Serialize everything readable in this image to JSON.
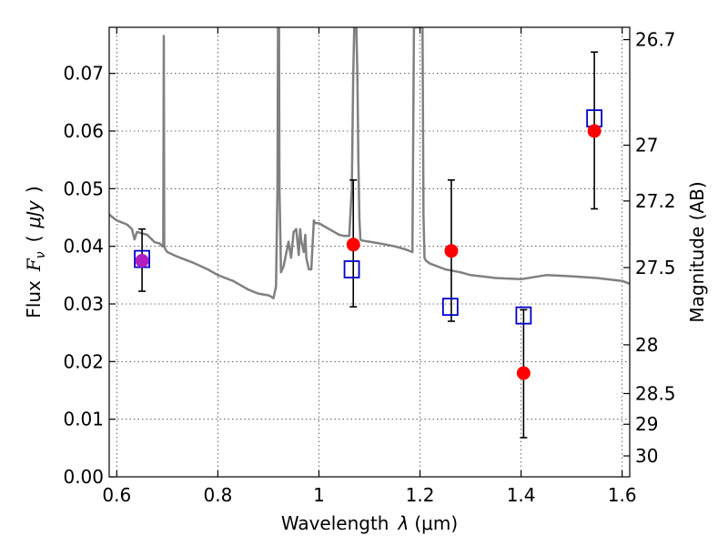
{
  "chart_data": {
    "type": "scatter",
    "xlabel": "Wavelength  λ (μm)",
    "ylabel": "Flux  Fν  ( μJy )",
    "ylabel_parts": {
      "flux": "Flux",
      "symbol": "F",
      "subscript": "ν",
      "open": "(",
      "unit": "μJy",
      "close": ")"
    },
    "xlabel_parts": {
      "word": "Wavelength",
      "symbol": "λ",
      "unit": "(μm)"
    },
    "y2label": "Magnitude (AB)",
    "xlim": [
      0.585,
      1.615
    ],
    "ylim": [
      0.0,
      0.078
    ],
    "grid": true,
    "x_ticks": [
      0.6,
      0.8,
      1.0,
      1.2,
      1.4,
      1.6
    ],
    "x_tick_labels": [
      "0.6",
      "0.8",
      "1",
      "1.2",
      "1.4",
      "1.6"
    ],
    "y_ticks": [
      0.0,
      0.01,
      0.02,
      0.03,
      0.04,
      0.05,
      0.06,
      0.07
    ],
    "y_tick_labels": [
      "0.00",
      "0.01",
      "0.02",
      "0.03",
      "0.04",
      "0.05",
      "0.06",
      "0.07"
    ],
    "y2_ticks": [
      26.7,
      27,
      27.2,
      27.5,
      28,
      28.5,
      29,
      30
    ],
    "y2_tick_labels": [
      "26.7",
      "27",
      "27.2",
      "27.5",
      "28",
      "28.5",
      "29",
      "30"
    ],
    "colors": {
      "spectrum": "#808080",
      "model": "#0000cc",
      "observed": "#ff0000",
      "observed_first": "#b020c0",
      "errorbar": "#000000"
    },
    "series": [
      {
        "kind": "spectrum",
        "x": [
          0.585,
          0.6,
          0.62,
          0.63,
          0.635,
          0.64,
          0.66,
          0.675,
          0.685,
          0.69,
          0.692,
          0.693,
          0.694,
          0.696,
          0.7,
          0.72,
          0.75,
          0.78,
          0.8,
          0.83,
          0.86,
          0.88,
          0.9,
          0.905,
          0.91,
          0.915,
          0.918,
          0.919,
          0.92,
          0.921,
          0.922,
          0.925,
          0.93,
          0.94,
          0.945,
          0.95,
          0.955,
          0.96,
          0.963,
          0.965,
          0.97,
          0.973,
          0.975,
          0.98,
          0.985,
          0.99,
          0.993,
          1.0,
          1.01,
          1.02,
          1.03,
          1.04,
          1.05,
          1.06,
          1.065,
          1.068,
          1.07,
          1.072,
          1.074,
          1.076,
          1.078,
          1.08,
          1.082,
          1.085,
          1.1,
          1.12,
          1.15,
          1.17,
          1.185,
          1.188,
          1.19,
          1.2,
          1.205,
          1.207,
          1.209,
          1.212,
          1.22,
          1.25,
          1.28,
          1.3,
          1.35,
          1.4,
          1.45,
          1.5,
          1.55,
          1.6,
          1.615
        ],
        "y": [
          0.0455,
          0.0445,
          0.0438,
          0.043,
          0.0412,
          0.0425,
          0.042,
          0.0407,
          0.0405,
          0.04,
          0.04,
          0.0765,
          0.0402,
          0.0395,
          0.039,
          0.0382,
          0.0372,
          0.036,
          0.035,
          0.034,
          0.0325,
          0.0318,
          0.0315,
          0.0313,
          0.031,
          0.033,
          0.05,
          0.078,
          0.078,
          0.078,
          0.05,
          0.0355,
          0.0365,
          0.0408,
          0.038,
          0.0425,
          0.043,
          0.0385,
          0.043,
          0.041,
          0.039,
          0.042,
          0.038,
          0.036,
          0.036,
          0.0445,
          0.044,
          0.044,
          0.0435,
          0.043,
          0.0425,
          0.042,
          0.0418,
          0.0418,
          0.05,
          0.07,
          0.078,
          0.078,
          0.078,
          0.07,
          0.055,
          0.045,
          0.0412,
          0.041,
          0.0408,
          0.0405,
          0.04,
          0.0395,
          0.039,
          0.078,
          0.078,
          0.078,
          0.078,
          0.045,
          0.038,
          0.0375,
          0.037,
          0.036,
          0.0355,
          0.035,
          0.0345,
          0.0343,
          0.035,
          0.0348,
          0.0345,
          0.034,
          0.0335
        ]
      },
      {
        "kind": "model_squares",
        "x": [
          0.65,
          1.065,
          1.26,
          1.405,
          1.545
        ],
        "y": [
          0.0378,
          0.036,
          0.0295,
          0.028,
          0.0622
        ]
      },
      {
        "kind": "observed_points",
        "x": [
          0.65,
          1.068,
          1.262,
          1.405,
          1.545
        ],
        "y": [
          0.0375,
          0.0403,
          0.0392,
          0.018,
          0.06
        ],
        "yerr_low": [
          0.0322,
          0.0295,
          0.027,
          0.0068,
          0.0465
        ],
        "yerr_high": [
          0.043,
          0.0515,
          0.0515,
          0.029,
          0.0737
        ]
      }
    ]
  }
}
